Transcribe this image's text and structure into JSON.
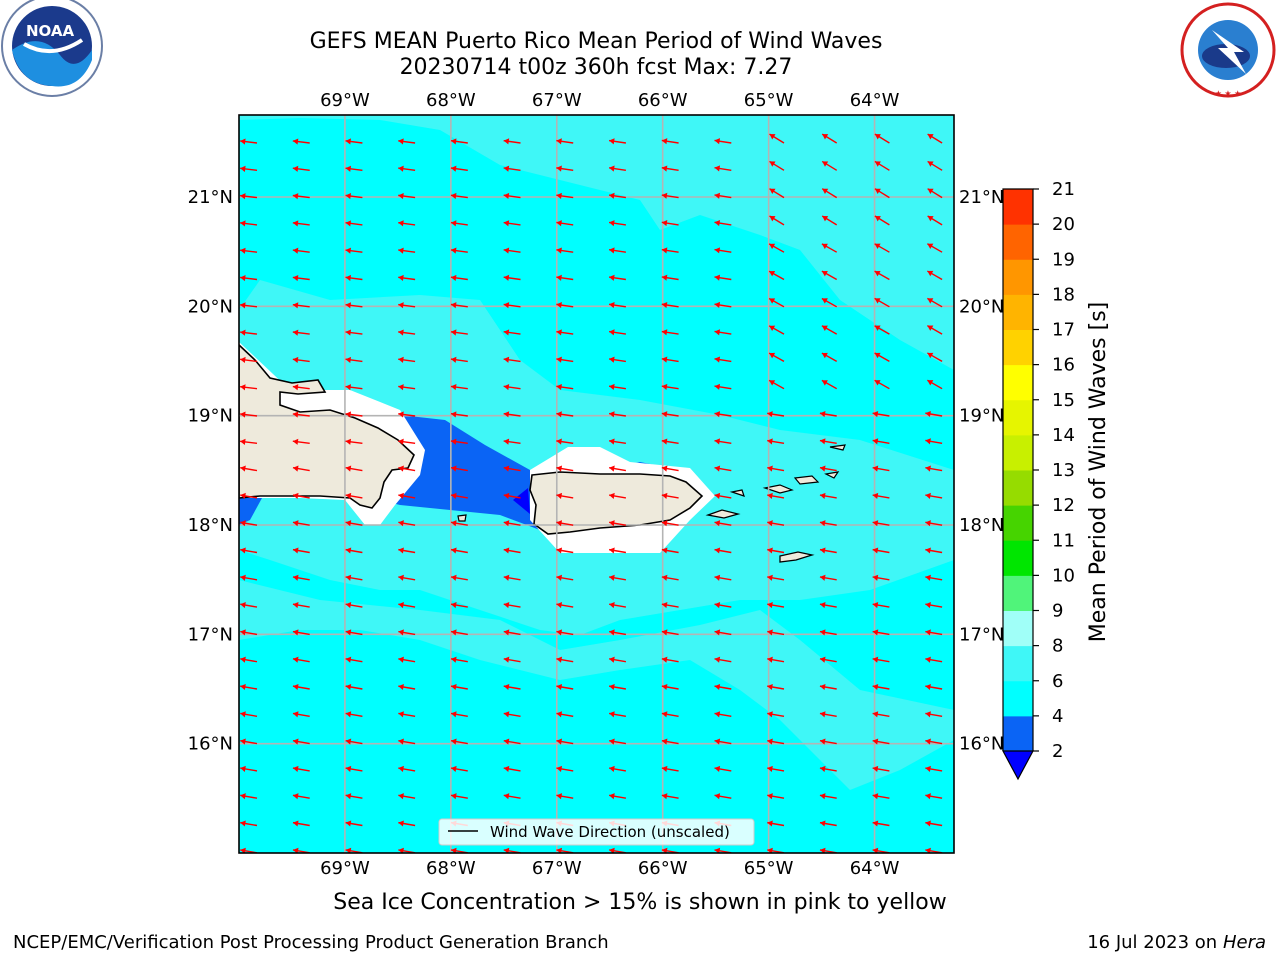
{
  "header": {
    "title_line1": "GEFS MEAN Puerto Rico Mean Period of Wind Waves",
    "title_line2": "20230714 t00z 360h fcst   Max: 7.27"
  },
  "logos": {
    "left": {
      "icon": "noaa-logo-icon",
      "text": "NOAA"
    },
    "right": {
      "icon": "nws-logo-icon",
      "text": "NATIONAL WEATHER SERVICE"
    }
  },
  "map": {
    "lon_ticks": [
      "69°W",
      "68°W",
      "67°W",
      "66°W",
      "65°W",
      "64°W"
    ],
    "lat_ticks": [
      "21°N",
      "20°N",
      "19°N",
      "18°N",
      "17°N",
      "16°N"
    ],
    "lon_range": [
      -70.0,
      -63.25
    ],
    "lat_range": [
      15.0,
      21.75
    ],
    "legend_label": "Wind Wave Direction (unscaled)",
    "arrow_color": "#ff0000",
    "land_color": "#eeeadc"
  },
  "colorbar": {
    "label": "Mean Period of Wind Waves [s]",
    "ticks": [
      "2",
      "4",
      "6",
      "8",
      "9",
      "10",
      "11",
      "12",
      "13",
      "14",
      "15",
      "16",
      "17",
      "18",
      "19",
      "20",
      "21"
    ],
    "colors": [
      "#0a64f5",
      "#00ffff",
      "#3ff7f7",
      "#a0fff8",
      "#50f47a",
      "#00e600",
      "#46d400",
      "#96dc00",
      "#c8f000",
      "#e6f500",
      "#ffff00",
      "#ffd200",
      "#ffb400",
      "#ff9600",
      "#ff6400",
      "#ff3200"
    ],
    "under_color": "#0000ff"
  },
  "note": "Sea Ice Concentration > 15% is shown in pink to yellow",
  "footer": {
    "left": "NCEP/EMC/Verification Post Processing Product Generation Branch",
    "date": "16 Jul 2023 on ",
    "host": "Hera"
  }
}
